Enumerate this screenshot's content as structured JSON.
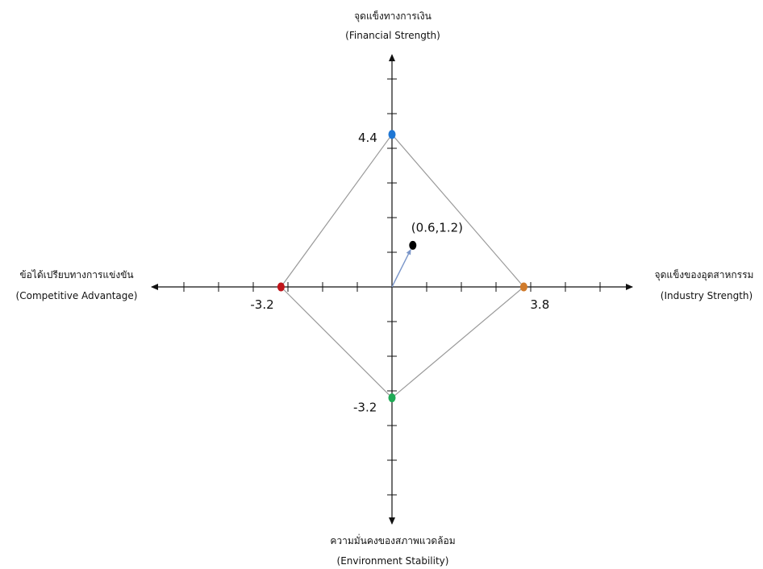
{
  "chart_data": {
    "type": "scatter",
    "axes": {
      "top": {
        "label": "จุดแข็งทางการเงิน",
        "label_en": "(Financial Strength)"
      },
      "bottom": {
        "label": "ความมั่นคงของสภาพแวดล้อม",
        "label_en": "(Environment Stability)"
      },
      "left": {
        "label": "ข้อได้เปรียบทางการแข่งขัน",
        "label_en": "(Competitive Advantage)"
      },
      "right": {
        "label": "จุดแข็งของอุตสาหกรรม",
        "label_en": "(Industry Strength)"
      }
    },
    "xlim": [
      -6,
      6
    ],
    "ylim": [
      -6,
      6
    ],
    "tick_step": 1,
    "points": [
      {
        "axis": "financial-strength",
        "x": 0,
        "y": 4.4,
        "label": "4.4",
        "color": "#1f77d4"
      },
      {
        "axis": "industry-strength",
        "x": 3.8,
        "y": 0,
        "label": "3.8",
        "color": "#d07a2a"
      },
      {
        "axis": "environment-stability",
        "x": 0,
        "y": -3.2,
        "label": "-3.2",
        "color": "#1faa55"
      },
      {
        "axis": "competitive-advantage",
        "x": -3.2,
        "y": 0,
        "label": "-3.2",
        "color": "#c0141a"
      }
    ],
    "result_point": {
      "x": 0.6,
      "y": 1.2,
      "label": "(0.6,1.2)",
      "color": "#000000"
    },
    "vector_color": "#7b96c9",
    "polygon_color": "#9a9a9a"
  }
}
